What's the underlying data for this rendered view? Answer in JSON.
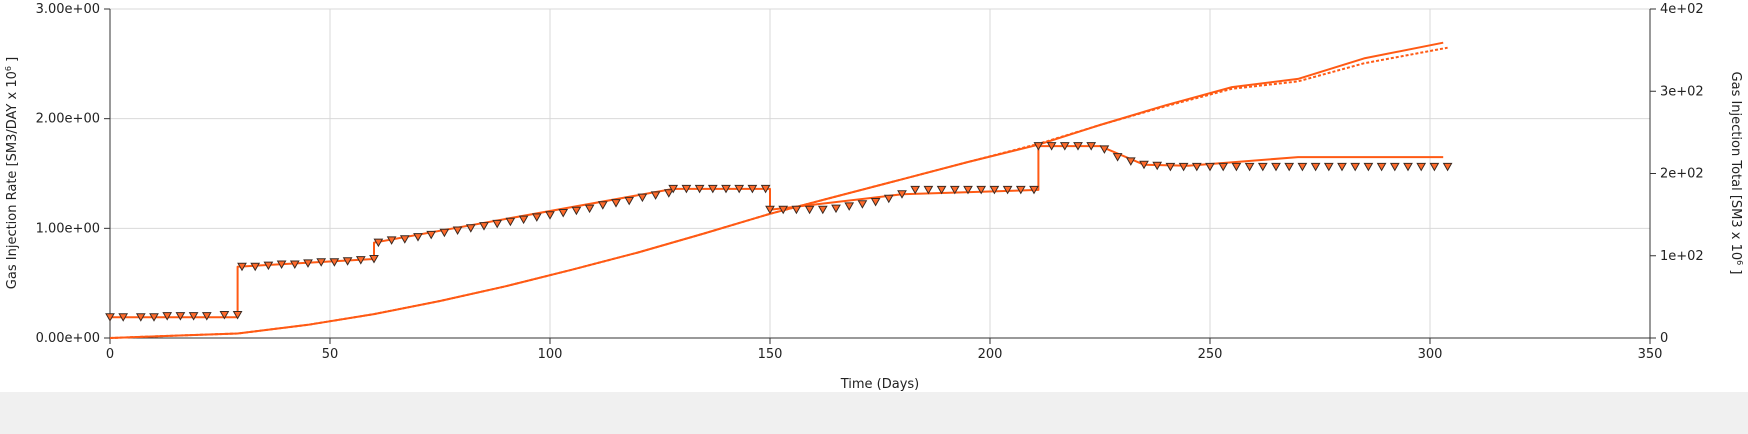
{
  "chart_data": {
    "type": "line",
    "title": "",
    "xlabel": "Time (Days)",
    "ylabel_left": "Gas Injection Rate [SM3/DAY x 10",
    "ylabel_left_exp": "6",
    "ylabel_left_end": " ]",
    "ylabel_right": "Gas Injection Total [SM3 x 10",
    "ylabel_right_exp": "6",
    "ylabel_right_end": " ]",
    "xlim": [
      0,
      350
    ],
    "ylim_left": [
      0,
      3
    ],
    "ylim_right": [
      0,
      400
    ],
    "grid": true,
    "legend": "none",
    "colors": {
      "simulated": "#ff5a14",
      "observed_fill": "#ff6a2a",
      "observed_edge": "#3a2a22",
      "grid": "#d9d9d9",
      "axis": "#333333"
    },
    "x_ticks": [
      0,
      50,
      100,
      150,
      200,
      250,
      300,
      350
    ],
    "x_tick_labels": [
      "0",
      "50",
      "100",
      "150",
      "200",
      "250",
      "300",
      "350"
    ],
    "left_ticks": [
      0,
      1,
      2,
      3
    ],
    "left_tick_labels": [
      "0.00e+00",
      "1.00e+00",
      "2.00e+00",
      "3.00e+00"
    ],
    "right_ticks": [
      0,
      100,
      200,
      300,
      400
    ],
    "right_tick_labels": [
      "0",
      "1e+02",
      "2e+02",
      "3e+02",
      "4e+02"
    ],
    "series": [
      {
        "axis": "left",
        "style": "solid-step",
        "x": [
          0,
          29,
          29,
          60,
          60,
          128,
          150,
          150,
          180,
          211,
          211,
          225,
          235,
          245,
          270,
          303
        ],
        "y": [
          0.19,
          0.19,
          0.65,
          0.72,
          0.87,
          1.36,
          1.36,
          1.17,
          1.31,
          1.35,
          1.75,
          1.75,
          1.58,
          1.57,
          1.65,
          1.65
        ]
      },
      {
        "axis": "left",
        "style": "markers",
        "marker": "triangle-down",
        "x": [
          0,
          3,
          7,
          10,
          13,
          16,
          19,
          22,
          26,
          29,
          30,
          33,
          36,
          39,
          42,
          45,
          48,
          51,
          54,
          57,
          60,
          61,
          64,
          67,
          70,
          73,
          76,
          79,
          82,
          85,
          88,
          91,
          94,
          97,
          100,
          103,
          106,
          109,
          112,
          115,
          118,
          121,
          124,
          127,
          128,
          131,
          134,
          137,
          140,
          143,
          146,
          149,
          150,
          153,
          156,
          159,
          162,
          165,
          168,
          171,
          174,
          177,
          180,
          183,
          186,
          189,
          192,
          195,
          198,
          201,
          204,
          207,
          210,
          211,
          214,
          217,
          220,
          223,
          226,
          229,
          232,
          235,
          238,
          241,
          244,
          247,
          250,
          253,
          256,
          259,
          262,
          265,
          268,
          271,
          274,
          277,
          280,
          283,
          286,
          289,
          292,
          295,
          298,
          301,
          304
        ],
        "y": [
          0.19,
          0.19,
          0.19,
          0.19,
          0.2,
          0.2,
          0.2,
          0.2,
          0.21,
          0.21,
          0.65,
          0.65,
          0.66,
          0.67,
          0.67,
          0.68,
          0.69,
          0.69,
          0.7,
          0.71,
          0.72,
          0.87,
          0.89,
          0.9,
          0.92,
          0.94,
          0.96,
          0.98,
          1.0,
          1.02,
          1.04,
          1.06,
          1.08,
          1.1,
          1.12,
          1.14,
          1.16,
          1.18,
          1.21,
          1.23,
          1.25,
          1.28,
          1.3,
          1.32,
          1.36,
          1.36,
          1.36,
          1.36,
          1.36,
          1.36,
          1.36,
          1.36,
          1.17,
          1.17,
          1.17,
          1.17,
          1.17,
          1.18,
          1.2,
          1.22,
          1.24,
          1.27,
          1.31,
          1.35,
          1.35,
          1.35,
          1.35,
          1.35,
          1.35,
          1.35,
          1.35,
          1.35,
          1.35,
          1.75,
          1.75,
          1.75,
          1.75,
          1.75,
          1.72,
          1.65,
          1.61,
          1.58,
          1.57,
          1.56,
          1.56,
          1.56,
          1.56,
          1.56,
          1.56,
          1.56,
          1.56,
          1.56,
          1.56,
          1.56,
          1.56,
          1.56,
          1.56,
          1.56,
          1.56,
          1.56,
          1.56,
          1.56,
          1.56,
          1.56,
          1.56
        ]
      },
      {
        "axis": "right",
        "style": "solid",
        "x": [
          0,
          15,
          29,
          45,
          60,
          75,
          90,
          105,
          120,
          135,
          150,
          165,
          180,
          195,
          211,
          225,
          240,
          255,
          270,
          285,
          303
        ],
        "y": [
          0,
          2.9,
          5.5,
          16,
          29,
          45,
          63,
          83,
          104,
          127,
          151,
          172,
          193,
          214,
          235,
          259,
          283,
          305,
          315,
          340,
          359
        ]
      },
      {
        "axis": "right",
        "style": "dotted",
        "x": [
          0,
          15,
          29,
          45,
          60,
          75,
          90,
          105,
          120,
          135,
          150,
          165,
          180,
          195,
          211,
          225,
          240,
          255,
          270,
          285,
          304
        ],
        "y": [
          0,
          2.9,
          5.5,
          16,
          29,
          45,
          63,
          83,
          104,
          127,
          151,
          172,
          193,
          214,
          236,
          259,
          282,
          303,
          312,
          334,
          353
        ]
      }
    ]
  }
}
